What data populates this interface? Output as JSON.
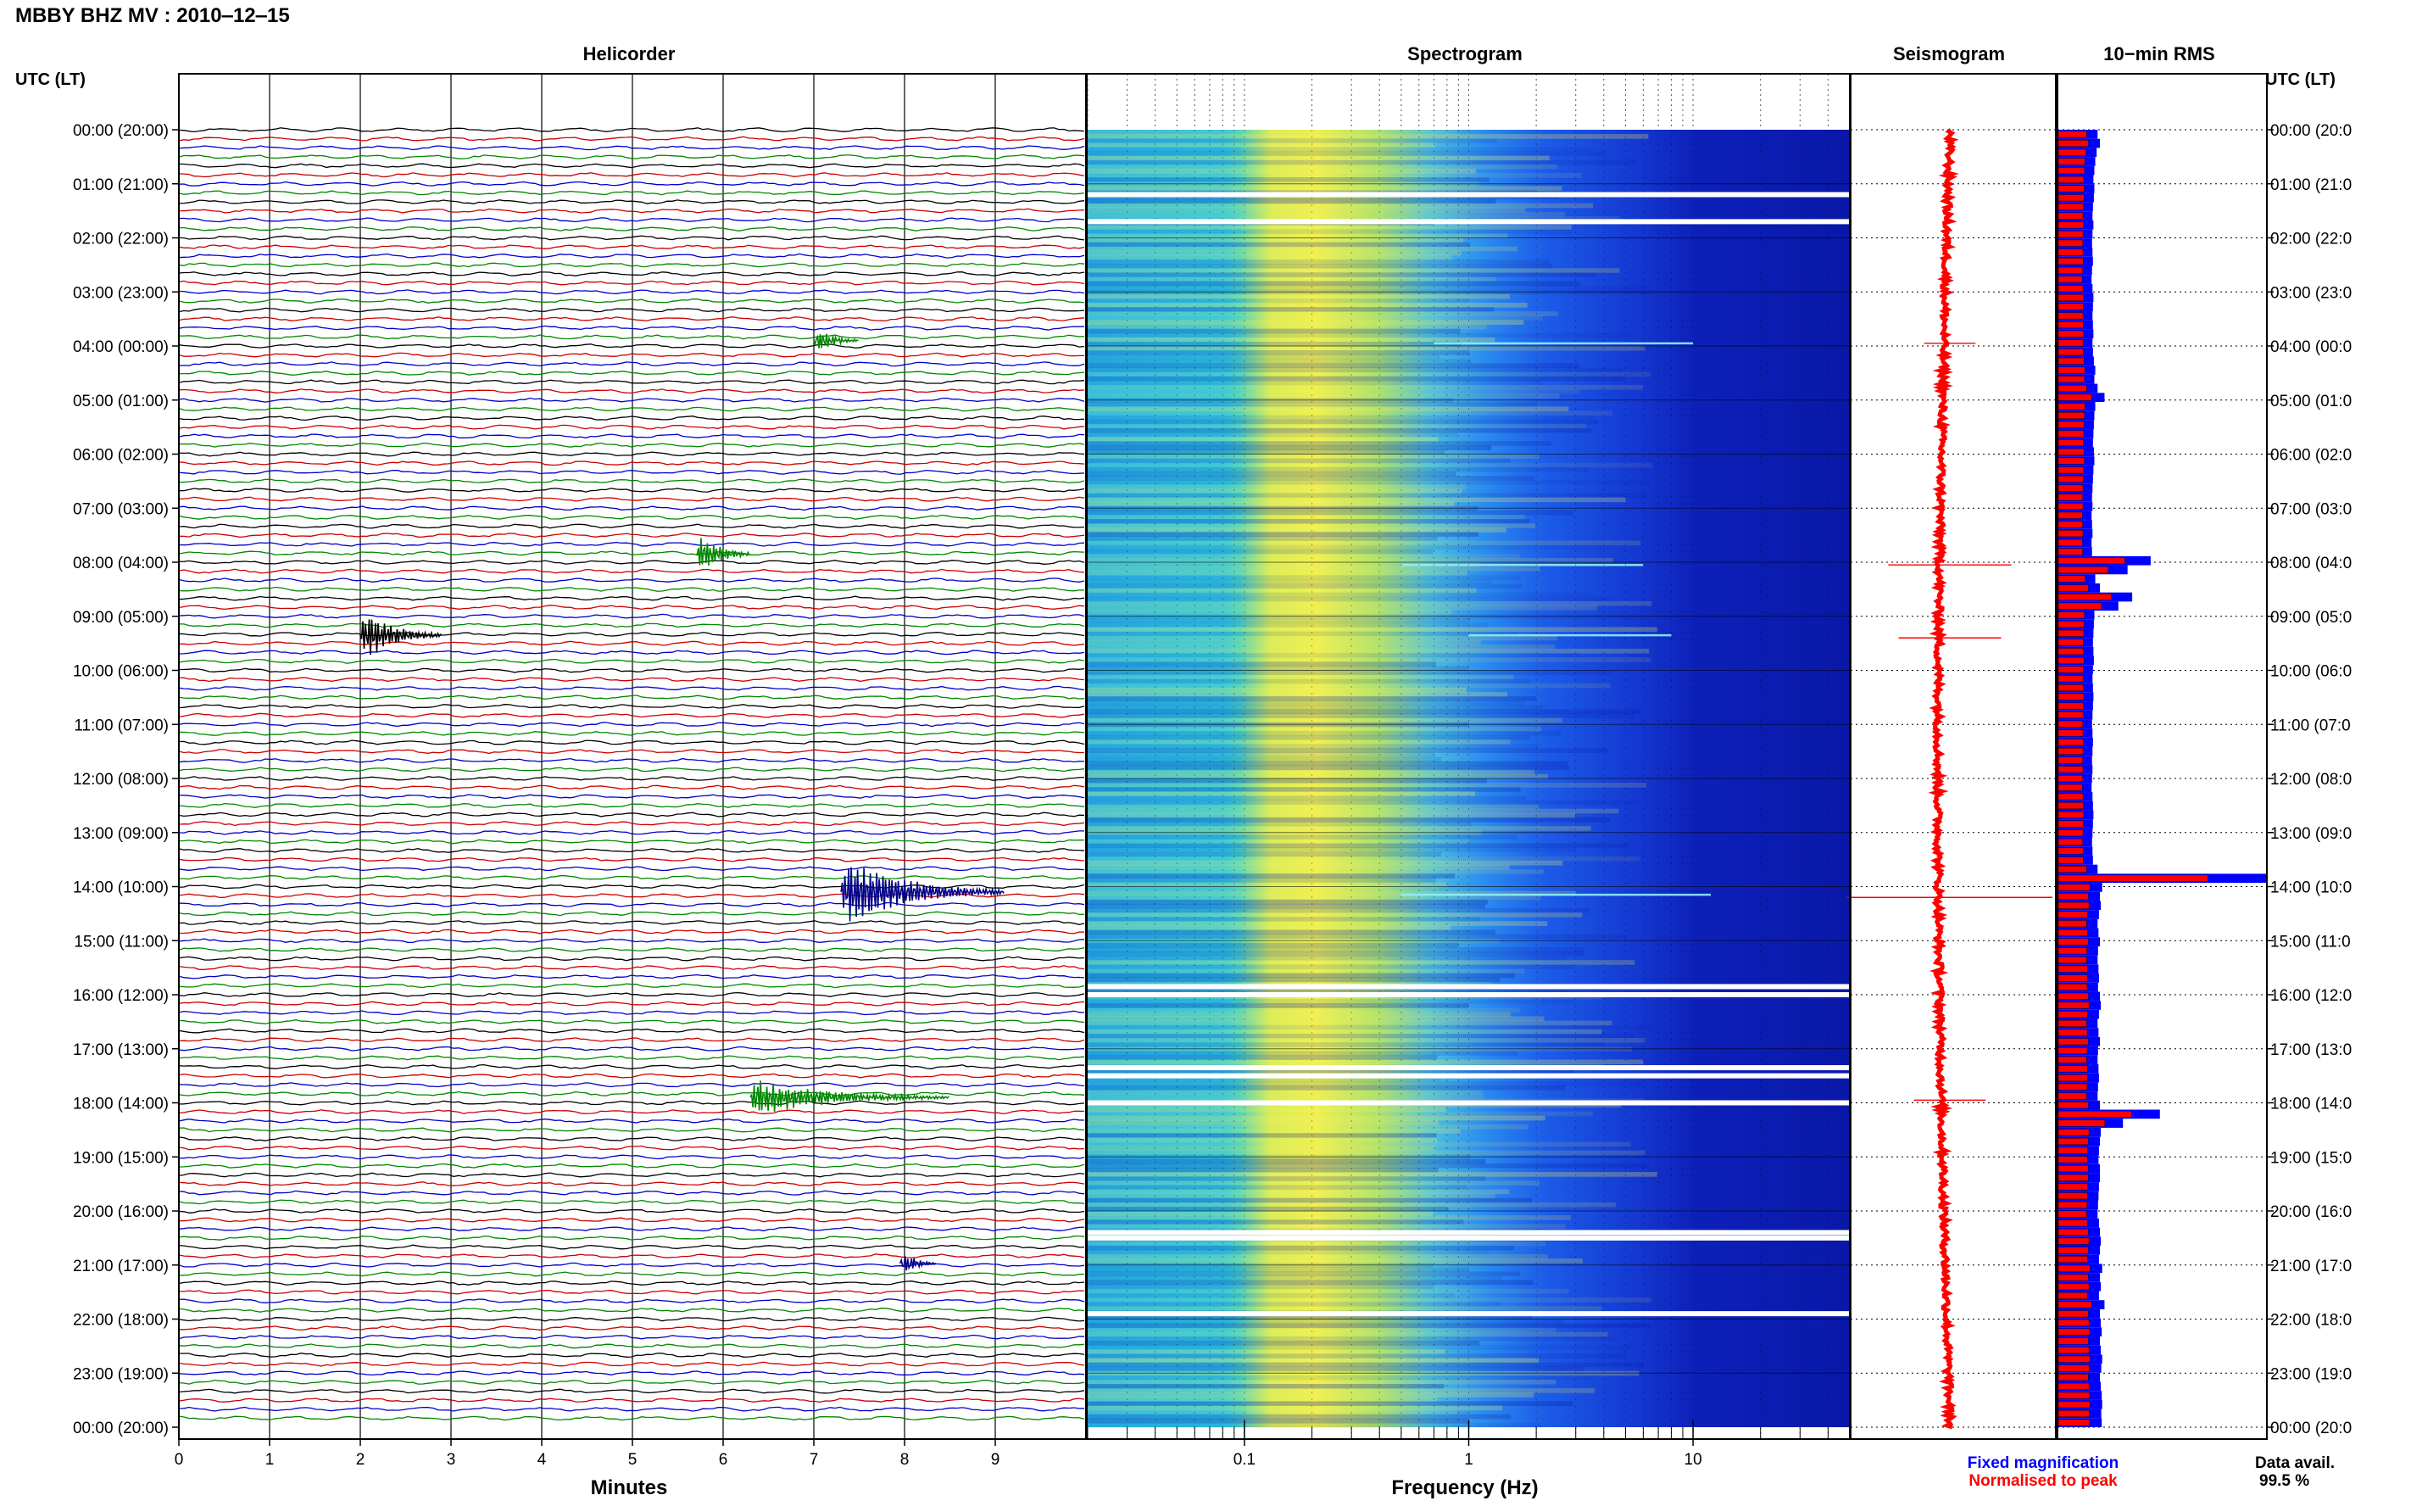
{
  "header": {
    "title": "MBBY BHZ MV : 2010‒12‒15",
    "utc_label_left": "UTC (LT)",
    "utc_label_right": "UTC (LT)"
  },
  "panels": {
    "helicorder": "Helicorder",
    "spectrogram": "Spectrogram",
    "seismogram": "Seismogram",
    "rms": "10−min RMS"
  },
  "axes": {
    "minutes_label": "Minutes",
    "frequency_label": "Frequency (Hz)",
    "minute_ticks": [
      "0",
      "1",
      "2",
      "3",
      "4",
      "5",
      "6",
      "7",
      "8",
      "9"
    ],
    "frequency_ticks": [
      {
        "value": 0.1,
        "label": "0.1"
      },
      {
        "value": 1,
        "label": "1"
      },
      {
        "value": 10,
        "label": "10"
      }
    ],
    "frequency_range": [
      0.02,
      50
    ],
    "time_labels_left": [
      "00:00 (20:00)",
      "01:00 (21:00)",
      "02:00 (22:00)",
      "03:00 (23:00)",
      "04:00 (00:00)",
      "05:00 (01:00)",
      "06:00 (02:00)",
      "07:00 (03:00)",
      "08:00 (04:00)",
      "09:00 (05:00)",
      "10:00 (06:00)",
      "11:00 (07:00)",
      "12:00 (08:00)",
      "13:00 (09:00)",
      "14:00 (10:00)",
      "15:00 (11:00)",
      "16:00 (12:00)",
      "17:00 (13:00)",
      "18:00 (14:00)",
      "19:00 (15:00)",
      "20:00 (16:00)",
      "21:00 (17:00)",
      "22:00 (18:00)",
      "23:00 (19:00)",
      "00:00 (20:00)"
    ],
    "time_labels_right": [
      "00:00 (20:0",
      "01:00 (21:0",
      "02:00 (22:0",
      "03:00 (23:0",
      "04:00 (00:0",
      "05:00 (01:0",
      "06:00 (02:0",
      "07:00 (03:0",
      "08:00 (04:0",
      "09:00 (05:0",
      "10:00 (06:0",
      "11:00 (07:0",
      "12:00 (08:0",
      "13:00 (09:0",
      "14:00 (10:0",
      "15:00 (11:0",
      "16:00 (12:0",
      "17:00 (13:0",
      "18:00 (14:0",
      "19:00 (15:0",
      "20:00 (16:0",
      "21:00 (17:0",
      "22:00 (18:0",
      "23:00 (19:0",
      "00:00 (20:0"
    ]
  },
  "legend": {
    "fixed": "Fixed magnification",
    "normalised": "Normalised to peak",
    "fixed_color": "#0000ff",
    "normalised_color": "#ff0000"
  },
  "availability": {
    "label": "Data avail.",
    "value": "99.5 %"
  },
  "chart_data": {
    "type": "heatmap",
    "trace_colors": [
      "#000000",
      "#cc0000",
      "#0000cc",
      "#008800"
    ],
    "events": [
      {
        "hour": 3.9,
        "minute": 7.0,
        "duration_min": 0.5,
        "amplitude": 0.7,
        "color": "#008800"
      },
      {
        "hour": 7.85,
        "minute": 5.7,
        "duration_min": 0.6,
        "amplitude": 1.1,
        "color": "#008800"
      },
      {
        "hour": 9.35,
        "minute": 2.0,
        "duration_min": 0.9,
        "amplitude": 1.2,
        "color": "#000000"
      },
      {
        "hour": 14.1,
        "minute": 7.3,
        "duration_min": 1.8,
        "amplitude": 1.6,
        "color": "#000088"
      },
      {
        "hour": 17.9,
        "minute": 6.3,
        "duration_min": 2.2,
        "amplitude": 0.8,
        "color": "#008800"
      },
      {
        "hour": 20.97,
        "minute": 7.95,
        "duration_min": 0.4,
        "amplitude": 0.6,
        "color": "#000088"
      }
    ],
    "spectral_lines": [
      {
        "hour": 3.95,
        "f_min": 0.7,
        "f_max": 10
      },
      {
        "hour": 8.05,
        "f_min": 0.5,
        "f_max": 6
      },
      {
        "hour": 9.35,
        "f_min": 1,
        "f_max": 8
      },
      {
        "hour": 14.15,
        "f_min": 0.5,
        "f_max": 12
      }
    ],
    "data_gaps_hours": [
      1.2,
      1.7,
      15.85,
      16.0,
      17.35,
      17.5,
      18.0,
      20.4,
      20.5,
      21.9
    ],
    "rms_fixed": [
      0.085,
      0.09,
      0.083,
      0.08,
      0.078,
      0.076,
      0.078,
      0.077,
      0.075,
      0.074,
      0.076,
      0.074,
      0.073,
      0.074,
      0.075,
      0.073,
      0.072,
      0.074,
      0.076,
      0.075,
      0.074,
      0.075,
      0.076,
      0.074,
      0.075,
      0.077,
      0.08,
      0.078,
      0.085,
      0.1,
      0.08,
      0.078,
      0.077,
      0.076,
      0.075,
      0.077,
      0.078,
      0.076,
      0.075,
      0.074,
      0.073,
      0.074,
      0.072,
      0.073,
      0.074,
      0.072,
      0.073,
      0.2,
      0.15,
      0.08,
      0.09,
      0.16,
      0.13,
      0.078,
      0.077,
      0.076,
      0.075,
      0.076,
      0.077,
      0.075,
      0.074,
      0.075,
      0.076,
      0.075,
      0.074,
      0.073,
      0.074,
      0.075,
      0.074,
      0.073,
      0.074,
      0.073,
      0.072,
      0.074,
      0.075,
      0.076,
      0.075,
      0.074,
      0.073,
      0.074,
      0.075,
      0.085,
      0.45,
      0.095,
      0.09,
      0.092,
      0.088,
      0.085,
      0.087,
      0.09,
      0.086,
      0.085,
      0.087,
      0.088,
      0.086,
      0.09,
      0.092,
      0.088,
      0.085,
      0.087,
      0.09,
      0.086,
      0.085,
      0.087,
      0.088,
      0.086,
      0.085,
      0.09,
      0.22,
      0.14,
      0.092,
      0.09,
      0.088,
      0.087,
      0.09,
      0.09,
      0.088,
      0.087,
      0.086,
      0.085,
      0.088,
      0.09,
      0.092,
      0.09,
      0.088,
      0.095,
      0.09,
      0.092,
      0.088,
      0.1,
      0.09,
      0.092,
      0.094,
      0.09,
      0.092,
      0.095,
      0.093,
      0.09,
      0.092,
      0.094,
      0.095,
      0.093,
      0.094
    ],
    "rms_normalised_ratio": 0.72,
    "seismogram_peaks": [
      {
        "hour": 3.95,
        "amplitude": 0.25
      },
      {
        "hour": 8.05,
        "amplitude": 0.6
      },
      {
        "hour": 9.4,
        "amplitude": 0.5
      },
      {
        "hour": 14.2,
        "amplitude": 1.0
      },
      {
        "hour": 17.95,
        "amplitude": 0.35
      }
    ]
  }
}
